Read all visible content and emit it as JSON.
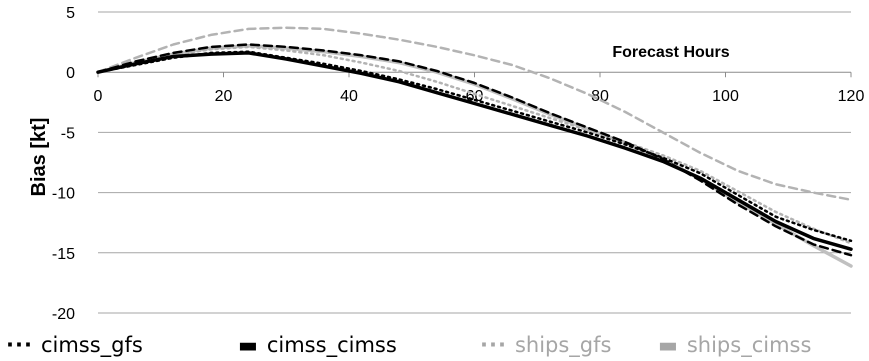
{
  "chart_data": {
    "type": "line",
    "xlabel": "Forecast Hours",
    "ylabel": "Bias [kt]",
    "xlim": [
      0,
      120
    ],
    "ylim": [
      -20,
      5
    ],
    "xticks": [
      "0",
      "20",
      "40",
      "60",
      "80",
      "100",
      "120"
    ],
    "yticks": [
      "5",
      "0",
      "-5",
      "-10",
      "-15",
      "-20"
    ],
    "grid": "horizontal",
    "legend_position": "bottom",
    "x": [
      0,
      6,
      12,
      18,
      24,
      30,
      36,
      42,
      48,
      54,
      60,
      66,
      72,
      78,
      84,
      90,
      96,
      102,
      108,
      114,
      120
    ],
    "series": [
      {
        "name": "cimss_gfs",
        "color": "#000000",
        "dash": "dotted",
        "values": [
          0.0,
          0.6,
          1.2,
          1.6,
          1.7,
          1.2,
          0.7,
          0.1,
          -0.6,
          -1.4,
          -2.3,
          -3.2,
          -4.1,
          -5.0,
          -6.0,
          -7.1,
          -8.4,
          -10.2,
          -12.0,
          -13.1,
          -14.0
        ]
      },
      {
        "name": "cimss_cimss",
        "color": "#000000",
        "dash": "dashed",
        "values": [
          0.0,
          0.9,
          1.6,
          2.1,
          2.3,
          2.1,
          1.8,
          1.4,
          0.9,
          0.1,
          -0.9,
          -2.1,
          -3.4,
          -4.6,
          -5.8,
          -7.2,
          -9.0,
          -11.0,
          -12.8,
          -14.3,
          -15.2
        ]
      },
      {
        "name": "ships_gfs",
        "color": "#b3b3b3",
        "dash": "dotted",
        "values": [
          0.0,
          0.7,
          1.4,
          1.9,
          2.1,
          1.8,
          1.4,
          0.8,
          0.1,
          -0.8,
          -1.8,
          -2.8,
          -3.8,
          -4.8,
          -5.8,
          -6.9,
          -8.2,
          -9.9,
          -11.6,
          -13.0,
          -14.2
        ]
      },
      {
        "name": "ships_cimss",
        "color": "#b3b3b3",
        "dash": "dashed",
        "values": [
          0.0,
          1.2,
          2.3,
          3.1,
          3.6,
          3.7,
          3.6,
          3.2,
          2.7,
          2.1,
          1.4,
          0.6,
          -0.5,
          -1.8,
          -3.3,
          -5.0,
          -6.7,
          -8.2,
          -9.3,
          -10.0,
          -10.6
        ]
      },
      {
        "name": "",
        "color": "#000000",
        "dash": "solid",
        "values": [
          0.0,
          0.7,
          1.3,
          1.5,
          1.6,
          1.1,
          0.5,
          -0.1,
          -0.8,
          -1.7,
          -2.6,
          -3.5,
          -4.4,
          -5.3,
          -6.3,
          -7.4,
          -8.8,
          -10.6,
          -12.4,
          -13.8,
          -14.7
        ]
      },
      {
        "name": "",
        "color": "#c0c0c0",
        "dash": "solid",
        "values": [
          0.0,
          0.8,
          1.5,
          2.0,
          2.2,
          2.0,
          1.7,
          1.3,
          0.8,
          0.0,
          -1.0,
          -2.2,
          -3.5,
          -4.7,
          -5.9,
          -7.2,
          -8.9,
          -10.8,
          -12.6,
          -14.4,
          -16.1
        ]
      }
    ]
  },
  "legend": [
    {
      "symbol": "···",
      "label": "cimss_gfs",
      "color": "#000000"
    },
    {
      "symbol": "▬",
      "label": "cimss_cimss",
      "color": "#000000"
    },
    {
      "symbol": "···",
      "label": "ships_gfs",
      "color": "#a6a6a6"
    },
    {
      "symbol": "▬",
      "label": "ships_cimss",
      "color": "#a6a6a6"
    }
  ]
}
